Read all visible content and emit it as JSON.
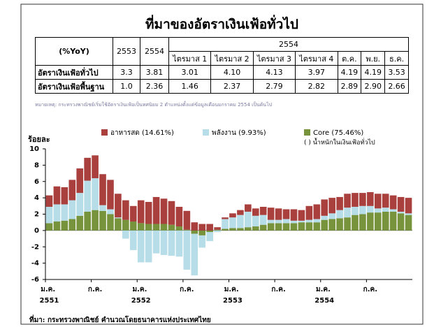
{
  "title": "ที่มาของอัตราเงินเฟ้อทั่วไป",
  "table": {
    "header": [
      "(%YoY)",
      "2553",
      "2554",
      "2554"
    ],
    "subheader": [
      "ไตรมาส 1",
      "ไตรมาส 2",
      "ไตรมาส 3",
      "ไตรมาส 4",
      "ต.ค.",
      "พ.ย.",
      "ธ.ค."
    ],
    "rows": [
      [
        "อัตราเงินเฟ้อทั่วไป",
        "3.3",
        "3.81",
        "3.01",
        "4.10",
        "4.13",
        "3.97",
        "4.19",
        "4.19",
        "3.53"
      ],
      [
        "อัตราเงินเฟ้อพื้นฐาน",
        "1.0",
        "2.36",
        "1.46",
        "2.37",
        "2.79",
        "2.82",
        "2.89",
        "2.90",
        "2.66"
      ]
    ]
  },
  "note": "หมายเหตุ: กระทรวงพาณิชย์เริ่มใช้อัตราเงินเฟ้อเป็นทศนิยม 2 ตำแหน่งตั้งแต่ข้อมูลเดือนมกราคม 2554 เป็นต้นไป",
  "source": "ที่มา: กระทรวงพาณิชย์ คำนวณโดยธนาคารแห่งประเทศไทย",
  "chart_data": {
    "type": "stacked_bar",
    "y_label": "ร้อยละ",
    "annotation": "( ) น้ำหนักในเงินเฟ้อทั่วไป",
    "categories": [
      "ม.ค. 2551",
      null,
      null,
      null,
      null,
      null,
      "ก.ค.",
      null,
      null,
      null,
      null,
      null,
      "ม.ค. 2552",
      null,
      null,
      null,
      null,
      null,
      "ก.ค.",
      null,
      null,
      null,
      null,
      null,
      "ม.ค. 2553",
      null,
      null,
      null,
      null,
      null,
      "ก.ค.",
      null,
      null,
      null,
      null,
      null,
      "ม.ค. 2554",
      null,
      null,
      null,
      null,
      null,
      "ก.ค.",
      null,
      null,
      null,
      null,
      null
    ],
    "ylim": [
      -6,
      10
    ],
    "yticks": [
      -6,
      -4,
      -2,
      0,
      2,
      4,
      6,
      8,
      10
    ],
    "series": [
      {
        "name": "อาหารสด (14.61%)",
        "color": "#a9403d",
        "values": [
          1.4,
          2.2,
          2.1,
          2.5,
          3.0,
          2.8,
          2.8,
          3.8,
          3.6,
          2.9,
          2.4,
          1.9,
          2.8,
          2.7,
          3.3,
          3.1,
          2.9,
          2.4,
          2.3,
          1.0,
          0.8,
          0.8,
          0.3,
          0.2,
          0.5,
          0.6,
          0.9,
          0.9,
          1.0,
          1.5,
          1.4,
          1.2,
          1.4,
          1.3,
          1.7,
          1.8,
          2.0,
          1.9,
          1.6,
          1.7,
          1.7,
          1.6,
          1.7,
          1.8,
          1.7,
          1.7,
          1.8,
          1.9
        ]
      },
      {
        "name": "พลังงาน (9.93%)",
        "color": "#b7dde8",
        "values": [
          2.0,
          2.1,
          2.0,
          2.3,
          2.8,
          3.8,
          3.9,
          0.7,
          0.6,
          0.1,
          -1.0,
          -2.4,
          -3.9,
          -3.9,
          -2.8,
          -3.0,
          -3.1,
          -3.2,
          -4.8,
          -5.1,
          -1.5,
          -1.1,
          -0.2,
          1.2,
          1.3,
          1.6,
          1.9,
          1.3,
          1.2,
          0.4,
          0.4,
          0.5,
          0.3,
          0.2,
          0.3,
          0.4,
          0.5,
          0.7,
          1.0,
          1.2,
          1.0,
          1.0,
          0.8,
          0.5,
          0.5,
          0.3,
          0.2,
          0.2
        ]
      },
      {
        "name": "Core (75.46%)",
        "color": "#77933c",
        "values": [
          0.9,
          1.1,
          1.2,
          1.4,
          1.8,
          2.3,
          2.5,
          2.4,
          2.0,
          1.5,
          1.3,
          1.1,
          0.9,
          0.8,
          0.8,
          0.8,
          0.7,
          0.5,
          0.1,
          -0.4,
          -0.6,
          -0.2,
          0.1,
          0.2,
          0.3,
          0.3,
          0.4,
          0.5,
          0.7,
          0.9,
          0.9,
          0.9,
          0.9,
          1.0,
          1.0,
          1.0,
          1.3,
          1.4,
          1.5,
          1.6,
          1.9,
          2.0,
          2.2,
          2.2,
          2.3,
          2.3,
          2.1,
          1.9
        ]
      }
    ]
  }
}
